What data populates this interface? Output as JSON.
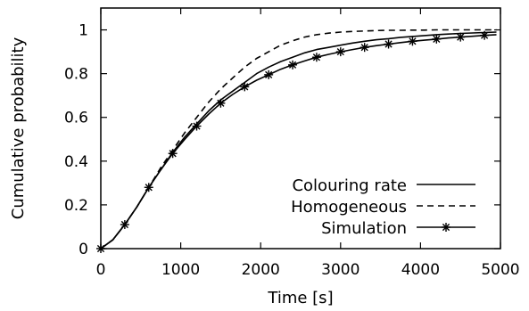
{
  "chart_data": {
    "type": "line",
    "xlabel": "Time [s]",
    "ylabel": "Cumulative probability",
    "xlim": [
      0,
      5000
    ],
    "ylim": [
      0,
      1.1
    ],
    "x_ticks": [
      "0",
      "1000",
      "2000",
      "3000",
      "4000",
      "5000"
    ],
    "y_ticks": [
      "0",
      "0.2",
      "0.4",
      "0.6",
      "0.8",
      "1"
    ],
    "grid": false,
    "legend_position": "bottom-right",
    "series": [
      {
        "name": "Colouring rate",
        "style": "solid",
        "x": [
          0,
          150,
          300,
          450,
          600,
          750,
          900,
          1050,
          1200,
          1350,
          1500,
          1650,
          1800,
          1950,
          2100,
          2250,
          2400,
          2550,
          2700,
          2850,
          3000,
          3150,
          3300,
          3450,
          3600,
          3750,
          3900,
          4050,
          4200,
          4350,
          4500,
          4650,
          4800,
          4950
        ],
        "y": [
          0,
          0.04,
          0.11,
          0.19,
          0.28,
          0.36,
          0.44,
          0.51,
          0.57,
          0.63,
          0.68,
          0.72,
          0.76,
          0.8,
          0.83,
          0.855,
          0.875,
          0.895,
          0.91,
          0.92,
          0.93,
          0.94,
          0.948,
          0.955,
          0.96,
          0.966,
          0.97,
          0.974,
          0.978,
          0.981,
          0.984,
          0.986,
          0.988,
          0.99
        ]
      },
      {
        "name": "Homogeneous",
        "style": "dashed",
        "x": [
          0,
          150,
          300,
          450,
          600,
          750,
          900,
          1050,
          1200,
          1350,
          1500,
          1650,
          1800,
          1950,
          2100,
          2250,
          2400,
          2550,
          2700,
          2850,
          3000,
          3150,
          3300,
          3450,
          3600,
          3750,
          3900,
          4050,
          4200,
          4350,
          4500,
          4650,
          4800,
          4950
        ],
        "y": [
          0,
          0.04,
          0.11,
          0.19,
          0.28,
          0.37,
          0.45,
          0.53,
          0.6,
          0.67,
          0.73,
          0.78,
          0.83,
          0.87,
          0.9,
          0.93,
          0.95,
          0.967,
          0.978,
          0.985,
          0.99,
          0.993,
          0.995,
          0.997,
          0.998,
          0.998,
          0.999,
          0.999,
          1.0,
          1.0,
          1.0,
          1.0,
          1.0,
          1.0
        ]
      },
      {
        "name": "Simulation",
        "style": "solid-star",
        "x": [
          0,
          300,
          600,
          900,
          1200,
          1500,
          1800,
          2100,
          2400,
          2700,
          3000,
          3300,
          3600,
          3900,
          4200,
          4500,
          4800
        ],
        "y": [
          0,
          0.11,
          0.28,
          0.435,
          0.56,
          0.665,
          0.74,
          0.795,
          0.84,
          0.875,
          0.9,
          0.92,
          0.935,
          0.948,
          0.958,
          0.967,
          0.975
        ],
        "line_x": [
          0,
          150,
          300,
          450,
          600,
          750,
          900,
          1050,
          1200,
          1350,
          1500,
          1650,
          1800,
          1950,
          2100,
          2250,
          2400,
          2550,
          2700,
          2850,
          3000,
          3150,
          3300,
          3450,
          3600,
          3750,
          3900,
          4050,
          4200,
          4350,
          4500,
          4650,
          4800,
          4950
        ],
        "line_y": [
          0,
          0.04,
          0.11,
          0.19,
          0.28,
          0.36,
          0.435,
          0.5,
          0.56,
          0.615,
          0.665,
          0.705,
          0.74,
          0.77,
          0.795,
          0.82,
          0.84,
          0.858,
          0.875,
          0.888,
          0.9,
          0.91,
          0.92,
          0.928,
          0.935,
          0.942,
          0.948,
          0.953,
          0.958,
          0.963,
          0.967,
          0.971,
          0.975,
          0.978
        ]
      }
    ]
  }
}
